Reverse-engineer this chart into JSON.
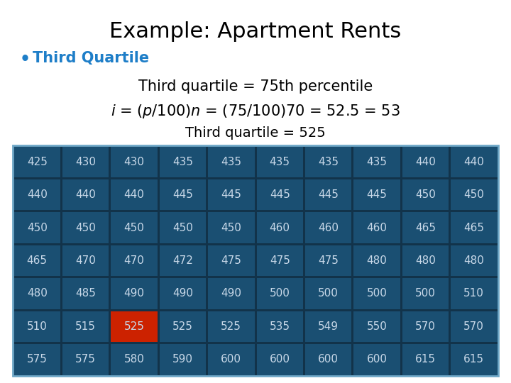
{
  "title": "Example: Apartment Rents",
  "bullet_text": "Third Quartile",
  "bullet_color": "#1E7EC8",
  "line1": "Third quartile = 75th percentile",
  "line3": "Third quartile = 525",
  "table": [
    [
      425,
      430,
      430,
      435,
      435,
      435,
      435,
      435,
      440,
      440
    ],
    [
      440,
      440,
      440,
      445,
      445,
      445,
      445,
      445,
      450,
      450
    ],
    [
      450,
      450,
      450,
      450,
      450,
      460,
      460,
      460,
      465,
      465
    ],
    [
      465,
      470,
      470,
      472,
      475,
      475,
      475,
      480,
      480,
      480
    ],
    [
      480,
      485,
      490,
      490,
      490,
      500,
      500,
      500,
      500,
      510
    ],
    [
      510,
      515,
      525,
      525,
      525,
      535,
      549,
      550,
      570,
      570
    ],
    [
      575,
      575,
      580,
      590,
      600,
      600,
      600,
      600,
      615,
      615
    ]
  ],
  "highlight_row": 5,
  "highlight_col": 2,
  "cell_bg": "#1A4F72",
  "cell_highlight": "#CC2200",
  "cell_text_color": "#C8D8E8",
  "table_border_color": "#6FA8C8",
  "table_bg_outer": "#12334A",
  "bg_color": "#FFFFFF",
  "title_fontsize": 22,
  "bullet_fontsize": 15,
  "line1_fontsize": 15,
  "line2_fontsize": 15,
  "line3_fontsize": 14,
  "cell_fontsize": 11
}
